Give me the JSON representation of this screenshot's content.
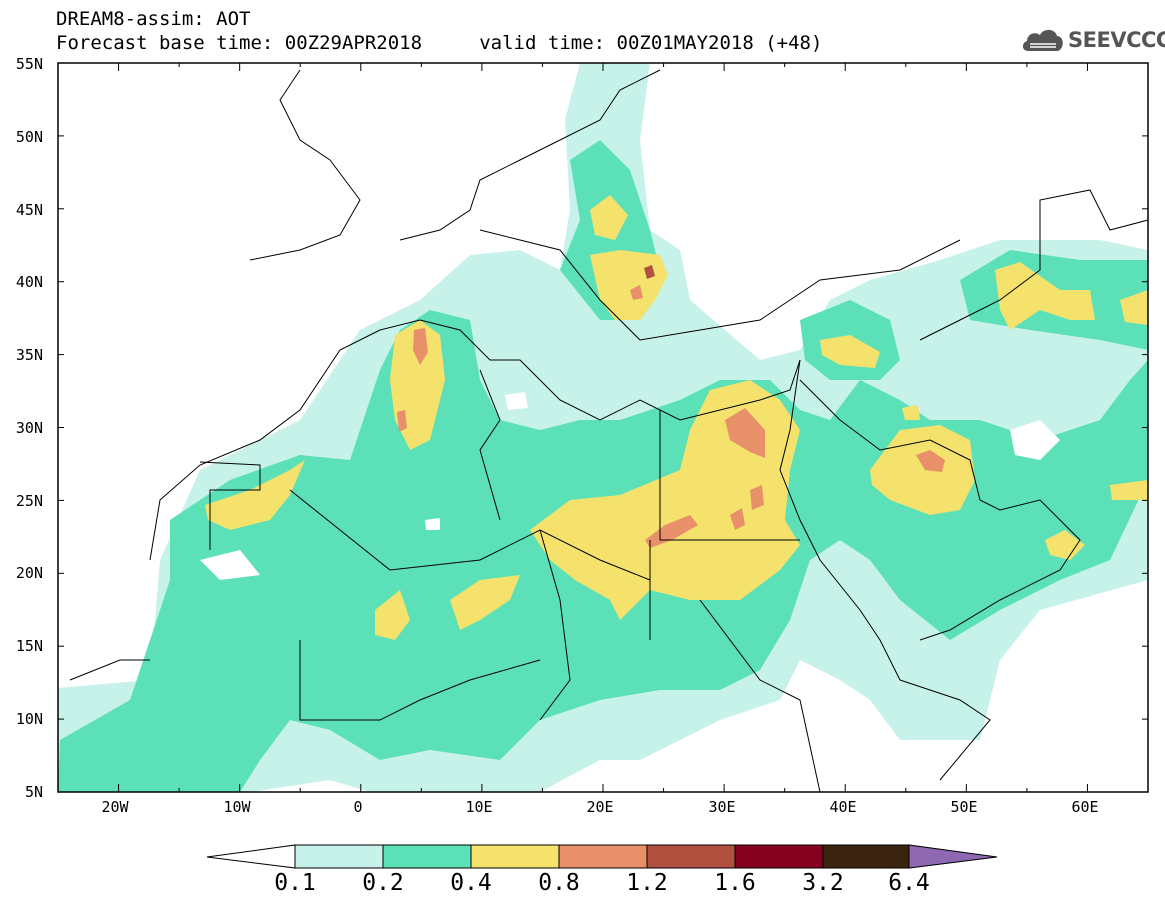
{
  "header": {
    "title_line1": "DREAM8-assim: AOT",
    "title_line2": "Forecast base time: 00Z29APR2018     valid time: 00Z01MAY2018 (+48)"
  },
  "logo": {
    "text": "SEEVCCC",
    "icon": "cloud-icon"
  },
  "map": {
    "lat_labels": [
      "55N",
      "50N",
      "45N",
      "40N",
      "35N",
      "30N",
      "25N",
      "20N",
      "15N",
      "10N",
      "5N"
    ],
    "lon_labels": [
      "20W",
      "10W",
      "0",
      "10E",
      "20E",
      "30E",
      "40E",
      "50E",
      "60E"
    ],
    "extent": {
      "lon": [
        -25,
        65
      ],
      "lat": [
        5,
        55
      ]
    }
  },
  "colorbar": {
    "labels": [
      "0.1",
      "0.2",
      "0.4",
      "0.8",
      "1.2",
      "1.6",
      "3.2",
      "6.4"
    ],
    "colors": [
      "#ffffff",
      "#c6f2ea",
      "#5ce0b8",
      "#f4e26c",
      "#e8906a",
      "#b25040",
      "#860020",
      "#3a2410",
      "#8e68b0"
    ]
  },
  "colors": {
    "background": "#ffffff",
    "border": "#000000"
  }
}
